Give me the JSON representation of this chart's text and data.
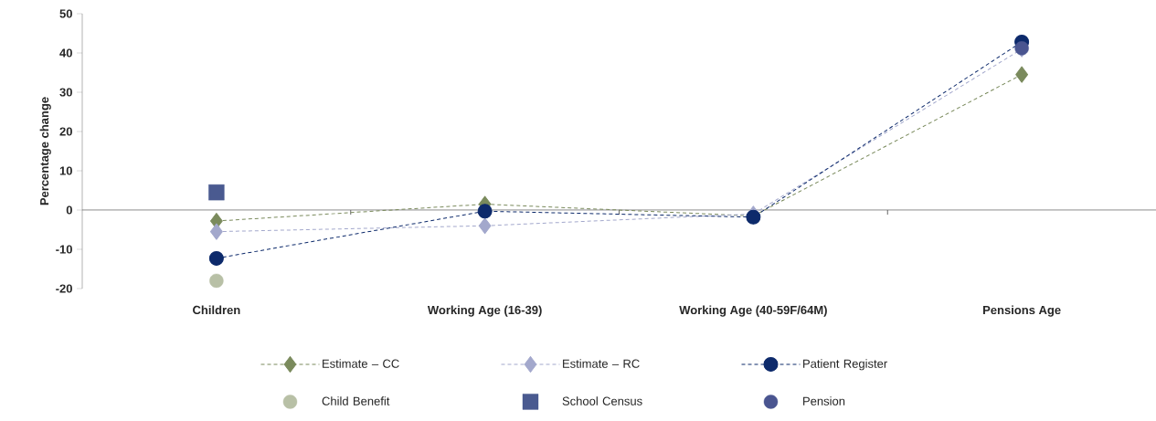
{
  "chart_data": {
    "type": "line",
    "ylabel": "Percentage change",
    "categories": [
      "Children",
      "Working Age (16-39)",
      "Working Age (40-59F/64M)",
      "Pensions Age"
    ],
    "ylim": [
      -20,
      50
    ],
    "yticks": [
      -20,
      -10,
      0,
      10,
      20,
      30,
      40,
      50
    ],
    "legend": "bottom",
    "grid": false,
    "ref_lines": [
      {
        "axis": "y",
        "value": 0,
        "color": "#595959",
        "line_style": "solid"
      }
    ],
    "series": [
      {
        "name": "Estimate – CC",
        "color": "#7a8a5c",
        "marker": "diamond",
        "line_style": "dashed",
        "values": [
          -2.8,
          1.5,
          -1.5,
          34.5
        ]
      },
      {
        "name": "Estimate – RC",
        "color": "#a3a8cc",
        "marker": "diamond",
        "line_style": "dashed",
        "values": [
          -5.5,
          -4,
          -1,
          41
        ]
      },
      {
        "name": "Patient Register",
        "color": "#0d2a6b",
        "marker": "circle",
        "line_style": "dashed",
        "values": [
          -12.3,
          -0.3,
          -1.8,
          42.8
        ]
      },
      {
        "name": "Child Benefit",
        "type": "scatter",
        "color": "#b8c0a6",
        "marker": "circle",
        "values": [
          -18,
          null,
          null,
          null
        ]
      },
      {
        "name": "School Census",
        "type": "scatter",
        "color": "#4a5a90",
        "marker": "square",
        "values": [
          4.5,
          null,
          null,
          null
        ]
      },
      {
        "name": "Pension",
        "type": "scatter",
        "color": "#4a5590",
        "marker": "circle",
        "values": [
          null,
          null,
          null,
          41.2
        ]
      }
    ]
  }
}
